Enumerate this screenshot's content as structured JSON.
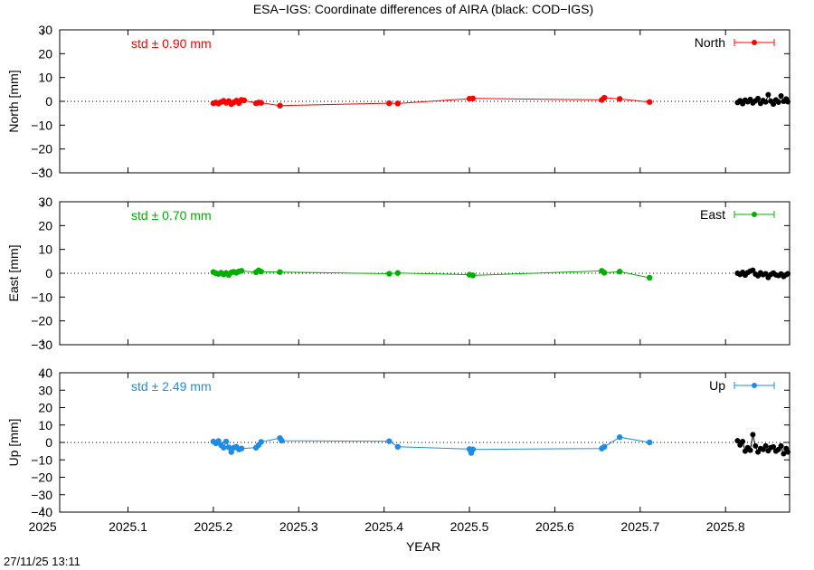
{
  "title": "ESA−IGS: Coordinate differences of AIRA (black: COD−IGS)",
  "footer_timestamp": "27/11/25 13:11",
  "chart_data": {
    "type": "line",
    "title": "ESA−IGS: Coordinate differences of AIRA (black: COD−IGS)",
    "xlabel": "YEAR",
    "xlim": [
      2025.02,
      2025.875
    ],
    "xticks": [
      2025,
      2025.1,
      2025.2,
      2025.3,
      2025.4,
      2025.5,
      2025.6,
      2025.7,
      2025.8
    ],
    "xticklabels": [
      "2025",
      "2025.1",
      "2025.2",
      "2025.3",
      "2025.4",
      "2025.5",
      "2025.6",
      "2025.7",
      "2025.8"
    ],
    "panels": [
      {
        "name": "north",
        "ylabel": "North [mm]",
        "ylim": [
          -30,
          30
        ],
        "yticks": [
          -30,
          -20,
          -10,
          0,
          10,
          20,
          30
        ],
        "yticklabels": [
          "−30",
          "−20",
          "−10",
          "0",
          "10",
          "20",
          "30"
        ],
        "std_label": "std ± 0.90 mm",
        "legend": "North",
        "color": "#ff0000",
        "series": [
          {
            "x": 2025.2,
            "y": -0.8
          },
          {
            "x": 2025.203,
            "y": -0.5
          },
          {
            "x": 2025.206,
            "y": -0.9
          },
          {
            "x": 2025.209,
            "y": -0.3
          },
          {
            "x": 2025.212,
            "y": 0.2
          },
          {
            "x": 2025.215,
            "y": -0.6
          },
          {
            "x": 2025.218,
            "y": 0.1
          },
          {
            "x": 2025.221,
            "y": -1.2
          },
          {
            "x": 2025.224,
            "y": -0.4
          },
          {
            "x": 2025.227,
            "y": 0.3
          },
          {
            "x": 2025.23,
            "y": -0.7
          },
          {
            "x": 2025.233,
            "y": 0.6
          },
          {
            "x": 2025.236,
            "y": 0.4
          },
          {
            "x": 2025.25,
            "y": -0.8
          },
          {
            "x": 2025.253,
            "y": -0.5
          },
          {
            "x": 2025.256,
            "y": -0.6
          },
          {
            "x": 2025.278,
            "y": -1.8
          },
          {
            "x": 2025.406,
            "y": -0.8
          },
          {
            "x": 2025.416,
            "y": -0.9
          },
          {
            "x": 2025.5,
            "y": 1.1
          },
          {
            "x": 2025.504,
            "y": 1.2
          },
          {
            "x": 2025.655,
            "y": 0.6
          },
          {
            "x": 2025.658,
            "y": 1.5
          },
          {
            "x": 2025.676,
            "y": 1.0
          },
          {
            "x": 2025.711,
            "y": -0.3
          }
        ],
        "cod": [
          {
            "x": 2025.814,
            "y": -0.5
          },
          {
            "x": 2025.817,
            "y": 0.3
          },
          {
            "x": 2025.82,
            "y": -1.0
          },
          {
            "x": 2025.823,
            "y": 0.5
          },
          {
            "x": 2025.826,
            "y": -0.2
          },
          {
            "x": 2025.829,
            "y": 0.8
          },
          {
            "x": 2025.832,
            "y": -0.7
          },
          {
            "x": 2025.835,
            "y": 0.2
          },
          {
            "x": 2025.838,
            "y": 1.2
          },
          {
            "x": 2025.841,
            "y": -0.9
          },
          {
            "x": 2025.844,
            "y": 0.4
          },
          {
            "x": 2025.847,
            "y": -0.3
          },
          {
            "x": 2025.85,
            "y": 2.8
          },
          {
            "x": 2025.853,
            "y": 0.1
          },
          {
            "x": 2025.856,
            "y": -1.2
          },
          {
            "x": 2025.859,
            "y": 0.6
          },
          {
            "x": 2025.862,
            "y": -0.4
          },
          {
            "x": 2025.865,
            "y": 2.3
          },
          {
            "x": 2025.868,
            "y": 0.0
          },
          {
            "x": 2025.871,
            "y": 1.0
          },
          {
            "x": 2025.873,
            "y": -0.2
          }
        ]
      },
      {
        "name": "east",
        "ylabel": "East [mm]",
        "ylim": [
          -30,
          30
        ],
        "yticks": [
          -30,
          -20,
          -10,
          0,
          10,
          20,
          30
        ],
        "yticklabels": [
          "−30",
          "−20",
          "−10",
          "0",
          "10",
          "20",
          "30"
        ],
        "std_label": "std ± 0.70 mm",
        "legend": "East",
        "color": "#00b000",
        "series": [
          {
            "x": 2025.2,
            "y": 0.5
          },
          {
            "x": 2025.203,
            "y": 0.0
          },
          {
            "x": 2025.206,
            "y": -0.3
          },
          {
            "x": 2025.209,
            "y": 0.2
          },
          {
            "x": 2025.212,
            "y": -0.5
          },
          {
            "x": 2025.215,
            "y": 0.1
          },
          {
            "x": 2025.218,
            "y": -0.7
          },
          {
            "x": 2025.221,
            "y": 0.3
          },
          {
            "x": 2025.224,
            "y": 0.6
          },
          {
            "x": 2025.227,
            "y": 0.2
          },
          {
            "x": 2025.23,
            "y": 0.8
          },
          {
            "x": 2025.233,
            "y": 1.0
          },
          {
            "x": 2025.25,
            "y": 0.4
          },
          {
            "x": 2025.253,
            "y": 1.2
          },
          {
            "x": 2025.256,
            "y": 0.7
          },
          {
            "x": 2025.278,
            "y": 0.5
          },
          {
            "x": 2025.406,
            "y": -0.2
          },
          {
            "x": 2025.416,
            "y": 0.1
          },
          {
            "x": 2025.5,
            "y": -0.6
          },
          {
            "x": 2025.504,
            "y": -0.9
          },
          {
            "x": 2025.655,
            "y": 1.0
          },
          {
            "x": 2025.658,
            "y": 0.2
          },
          {
            "x": 2025.676,
            "y": 0.7
          },
          {
            "x": 2025.711,
            "y": -1.9
          }
        ],
        "cod": [
          {
            "x": 2025.814,
            "y": 0.0
          },
          {
            "x": 2025.817,
            "y": -0.5
          },
          {
            "x": 2025.82,
            "y": 0.4
          },
          {
            "x": 2025.823,
            "y": -0.8
          },
          {
            "x": 2025.826,
            "y": 0.3
          },
          {
            "x": 2025.829,
            "y": 0.9
          },
          {
            "x": 2025.832,
            "y": 1.3
          },
          {
            "x": 2025.835,
            "y": -0.4
          },
          {
            "x": 2025.838,
            "y": -1.1
          },
          {
            "x": 2025.841,
            "y": 0.2
          },
          {
            "x": 2025.844,
            "y": -0.6
          },
          {
            "x": 2025.847,
            "y": -0.2
          },
          {
            "x": 2025.85,
            "y": -1.8
          },
          {
            "x": 2025.853,
            "y": -0.5
          },
          {
            "x": 2025.856,
            "y": 0.1
          },
          {
            "x": 2025.859,
            "y": -0.7
          },
          {
            "x": 2025.862,
            "y": -1.0
          },
          {
            "x": 2025.865,
            "y": -0.3
          },
          {
            "x": 2025.868,
            "y": -1.4
          },
          {
            "x": 2025.871,
            "y": -0.6
          },
          {
            "x": 2025.873,
            "y": -0.2
          }
        ]
      },
      {
        "name": "up",
        "ylabel": "Up [mm]",
        "ylim": [
          -40,
          40
        ],
        "yticks": [
          -40,
          -30,
          -20,
          -10,
          0,
          10,
          20,
          30,
          40
        ],
        "yticklabels": [
          "−40",
          "−30",
          "−20",
          "−10",
          "0",
          "10",
          "20",
          "30",
          "40"
        ],
        "std_label": "std ± 2.49 mm",
        "legend": "Up",
        "color": "#1e8ce6",
        "series": [
          {
            "x": 2025.2,
            "y": 0.5
          },
          {
            "x": 2025.203,
            "y": -0.5
          },
          {
            "x": 2025.206,
            "y": 0.8
          },
          {
            "x": 2025.209,
            "y": -1.5
          },
          {
            "x": 2025.212,
            "y": -3.0
          },
          {
            "x": 2025.215,
            "y": 0.5
          },
          {
            "x": 2025.218,
            "y": -2.8
          },
          {
            "x": 2025.221,
            "y": -5.5
          },
          {
            "x": 2025.224,
            "y": -3.0
          },
          {
            "x": 2025.227,
            "y": -2.5
          },
          {
            "x": 2025.23,
            "y": -4.0
          },
          {
            "x": 2025.233,
            "y": -3.5
          },
          {
            "x": 2025.25,
            "y": -3.0
          },
          {
            "x": 2025.253,
            "y": -1.5
          },
          {
            "x": 2025.256,
            "y": 0.3
          },
          {
            "x": 2025.278,
            "y": 2.5
          },
          {
            "x": 2025.28,
            "y": 1.0
          },
          {
            "x": 2025.406,
            "y": 0.7
          },
          {
            "x": 2025.416,
            "y": -2.5
          },
          {
            "x": 2025.5,
            "y": -3.8
          },
          {
            "x": 2025.502,
            "y": -6.0
          },
          {
            "x": 2025.504,
            "y": -4.0
          },
          {
            "x": 2025.655,
            "y": -3.5
          },
          {
            "x": 2025.658,
            "y": -2.5
          },
          {
            "x": 2025.676,
            "y": 3.0
          },
          {
            "x": 2025.711,
            "y": 0.0
          }
        ],
        "cod": [
          {
            "x": 2025.814,
            "y": 1.0
          },
          {
            "x": 2025.817,
            "y": -1.5
          },
          {
            "x": 2025.82,
            "y": 0.5
          },
          {
            "x": 2025.823,
            "y": -5.0
          },
          {
            "x": 2025.826,
            "y": -3.0
          },
          {
            "x": 2025.829,
            "y": -4.5
          },
          {
            "x": 2025.832,
            "y": 4.5
          },
          {
            "x": 2025.835,
            "y": -2.0
          },
          {
            "x": 2025.838,
            "y": -5.5
          },
          {
            "x": 2025.841,
            "y": -3.5
          },
          {
            "x": 2025.844,
            "y": -4.0
          },
          {
            "x": 2025.847,
            "y": -2.0
          },
          {
            "x": 2025.85,
            "y": -4.8
          },
          {
            "x": 2025.853,
            "y": -3.0
          },
          {
            "x": 2025.856,
            "y": -2.5
          },
          {
            "x": 2025.859,
            "y": -5.0
          },
          {
            "x": 2025.862,
            "y": -4.0
          },
          {
            "x": 2025.865,
            "y": -2.0
          },
          {
            "x": 2025.868,
            "y": -6.5
          },
          {
            "x": 2025.871,
            "y": -3.5
          },
          {
            "x": 2025.873,
            "y": -5.5
          }
        ]
      }
    ]
  }
}
